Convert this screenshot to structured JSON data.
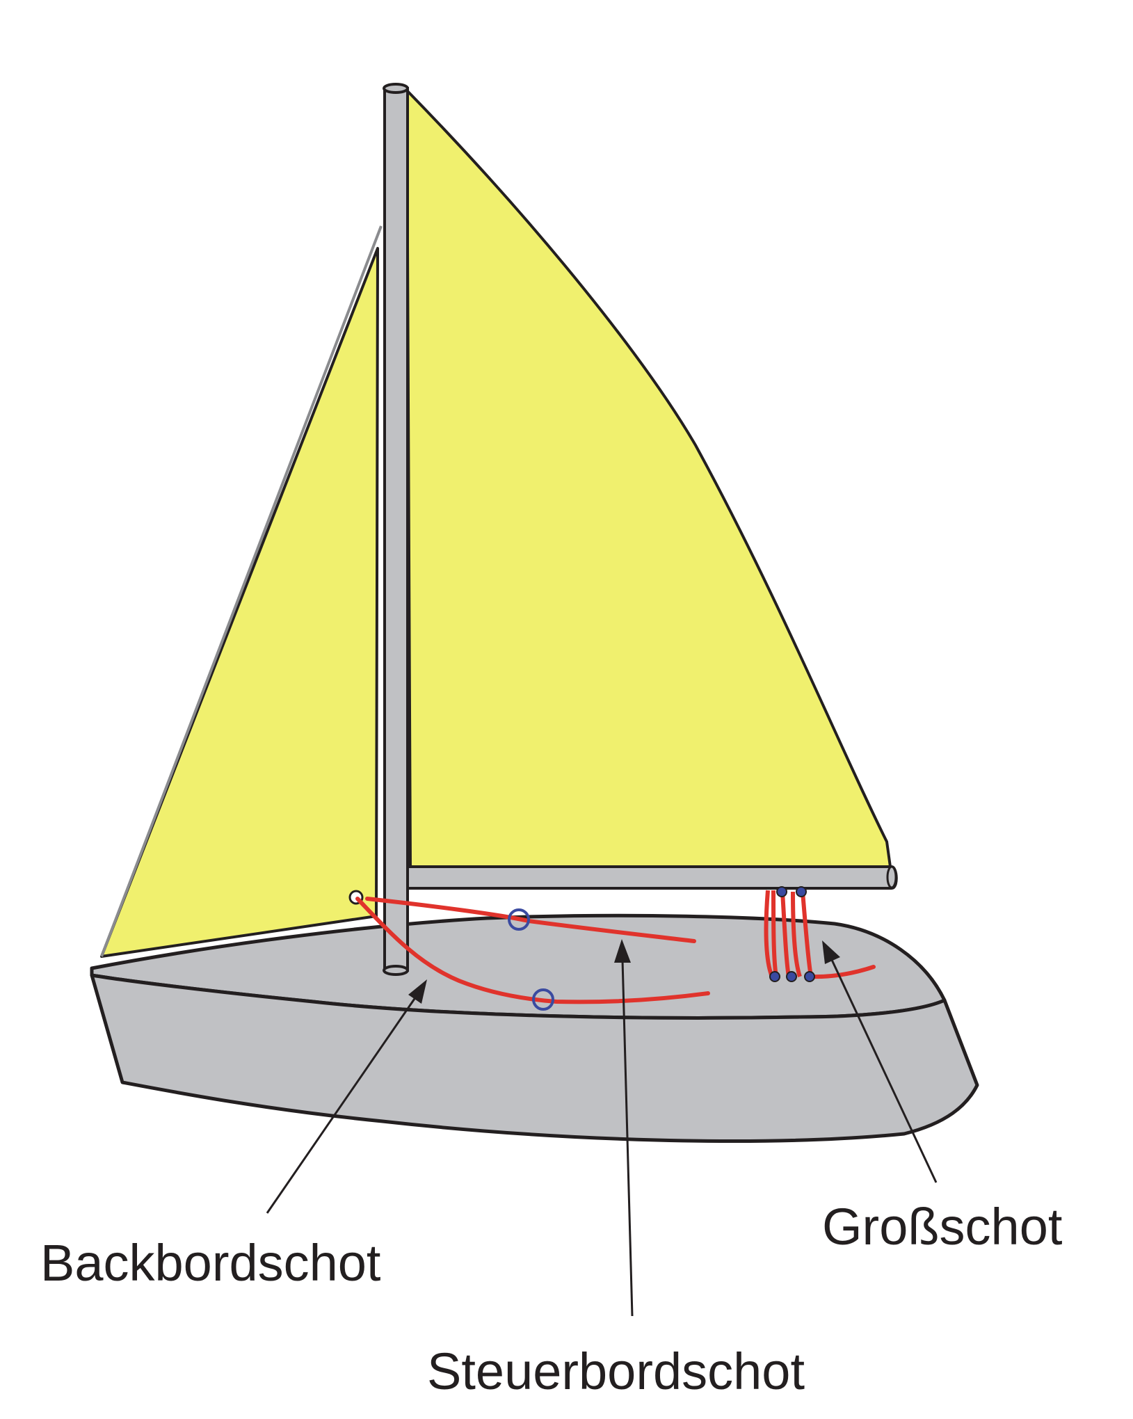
{
  "labels": {
    "port_sheet": "Backbordschot",
    "starboard_sheet": "Steuerbordschot",
    "main_sheet": "Großschot"
  },
  "colors": {
    "sail": "#f0f06e",
    "hull": "#c0c1c4",
    "mast": "#c0c1c4",
    "sheet_line": "#e0332c",
    "fairlead": "#3a4aa0",
    "outline": "#231f20"
  },
  "icons": {
    "sail_shape": "triangle-sail",
    "fairlead": "ring-icon",
    "arrow": "arrowhead-icon"
  }
}
